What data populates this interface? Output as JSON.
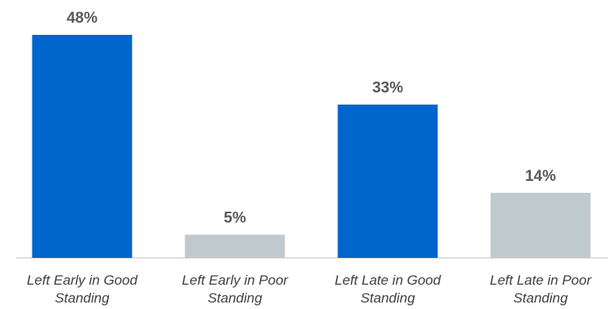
{
  "chart_data": {
    "type": "bar",
    "categories": [
      [
        "Left Early in Good",
        "Standing"
      ],
      [
        "Left Early in Poor",
        "Standing"
      ],
      [
        "Left Late in Good",
        "Standing"
      ],
      [
        "Left Late in Poor",
        "Standing"
      ]
    ],
    "values": [
      48,
      5,
      33,
      14
    ],
    "value_labels": [
      "48%",
      "5%",
      "33%",
      "14%"
    ],
    "bar_colors": [
      "#0066cc",
      "#c0c9ce",
      "#0066cc",
      "#c0c9ce"
    ],
    "ylim": [
      0,
      48
    ],
    "title": "",
    "xlabel": "",
    "ylabel": "",
    "grid": false,
    "legend": "none"
  }
}
